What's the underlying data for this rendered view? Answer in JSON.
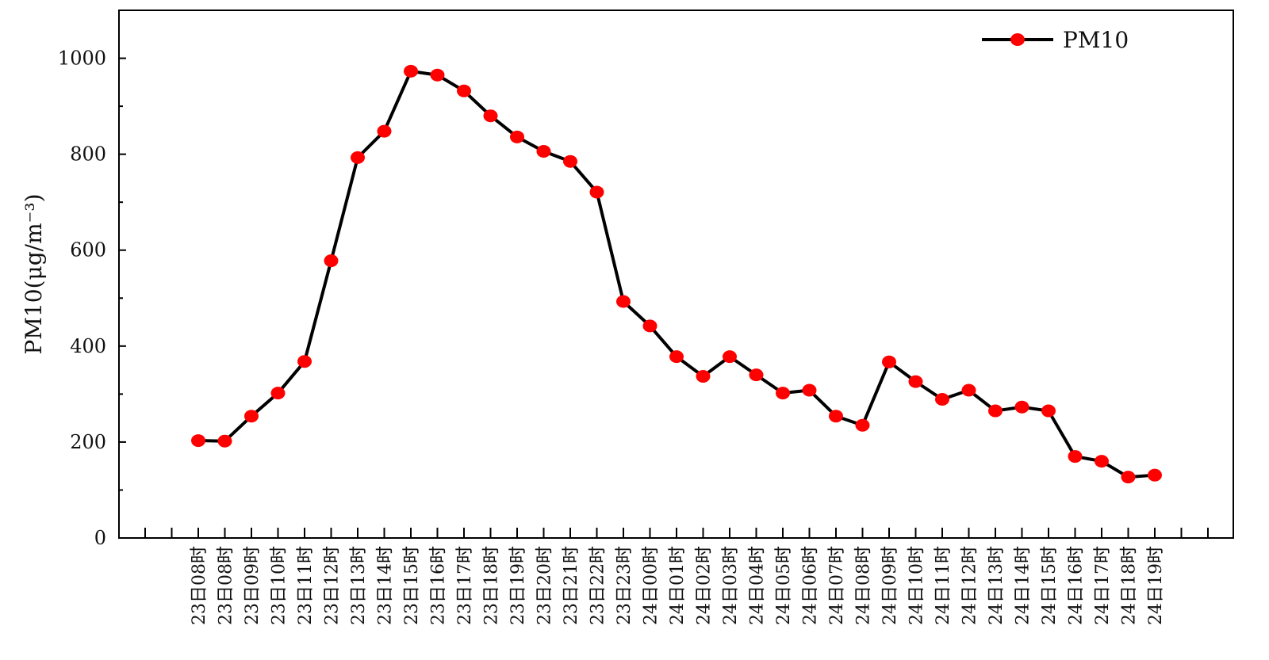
{
  "chart_data": {
    "type": "line",
    "title": "",
    "xlabel": "",
    "ylabel": "PM10(μg/m⁻³)",
    "ylim": [
      0,
      1100
    ],
    "yticks": [
      0,
      200,
      400,
      600,
      800,
      1000
    ],
    "grid": false,
    "legend_position": "top-right",
    "colors": {
      "line": "#000000",
      "marker": "#ff0000"
    },
    "categories": [
      "23日08时",
      "23日08时",
      "23日09时",
      "23日10时",
      "23日11时",
      "23日12时",
      "23日13时",
      "23日14时",
      "23日15时",
      "23日16时",
      "23日17时",
      "23日18时",
      "23日19时",
      "23日20时",
      "23日21时",
      "23日22时",
      "23日23时",
      "24日00时",
      "24日01时",
      "24日02时",
      "24日03时",
      "24日04时",
      "24日05时",
      "24日06时",
      "24日07时",
      "24日08时",
      "24日09时",
      "24日10时",
      "24日11时",
      "24日12时",
      "24日13时",
      "24日14时",
      "24日15时",
      "24日16时",
      "24日17时",
      "24日18时",
      "24日19时"
    ],
    "series": [
      {
        "name": "PM10",
        "values": [
          203,
          202,
          254,
          302,
          368,
          578,
          793,
          848,
          973,
          965,
          932,
          880,
          836,
          806,
          785,
          721,
          493,
          442,
          378,
          337,
          378,
          340,
          302,
          308,
          254,
          235,
          367,
          326,
          289,
          308,
          265,
          273,
          265,
          170,
          160,
          127,
          131
        ]
      }
    ]
  }
}
